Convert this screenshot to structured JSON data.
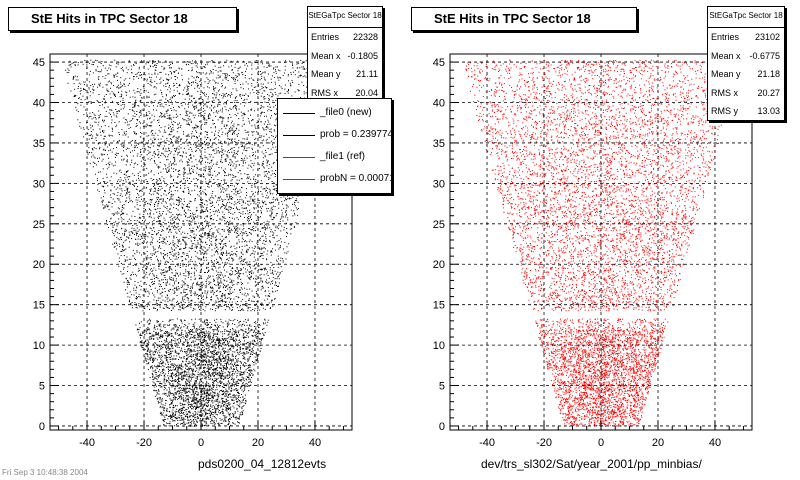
{
  "left": {
    "title": "StE Hits in TPC Sector 18",
    "xlabel": "pds0200_04_12812evts",
    "stats": {
      "name": "StEGaTpc Sector 18",
      "rows": [
        {
          "label": "Entries",
          "value": "22328"
        },
        {
          "label": "Mean x",
          "value": "-0.1805"
        },
        {
          "label": "Mean y",
          "value": "21.11"
        },
        {
          "label": "RMS x",
          "value": "20.04"
        }
      ]
    },
    "legend": [
      {
        "label": "_file0 (new)",
        "color": "#000000"
      },
      {
        "label": "prob = 0.239774",
        "color": "#000000"
      },
      {
        "label": "_file1 (ref)",
        "color": "#ff0000"
      },
      {
        "label": "probN = 0.00071",
        "color": "#ff0000"
      }
    ]
  },
  "right": {
    "title": "StE Hits in TPC Sector 18",
    "xlabel": "dev/trs_sl302/Sat/year_2001/pp_minbias/",
    "stats": {
      "name": "StEGaTpc Sector 18",
      "rows": [
        {
          "label": "Entries",
          "value": "23102"
        },
        {
          "label": "Mean x",
          "value": "-0.6775"
        },
        {
          "label": "Mean y",
          "value": "21.18"
        },
        {
          "label": "RMS x",
          "value": "20.27"
        },
        {
          "label": "RMS y",
          "value": "13.03"
        }
      ]
    }
  },
  "corner_text": "Fri Sep  3 10:48:38 2004",
  "chart_data": [
    {
      "type": "scatter",
      "title": "StE Hits in TPC Sector 18",
      "xlabel": "pds0200_04_12812evts",
      "ylabel": "",
      "xlim": [
        -53,
        53
      ],
      "ylim": [
        -0.5,
        46
      ],
      "xticks": [
        -40,
        -20,
        0,
        20,
        40
      ],
      "yticks": [
        0,
        5,
        10,
        15,
        20,
        25,
        30,
        35,
        40,
        45
      ],
      "grid": true,
      "color": "#000000",
      "entries": 22328,
      "mean_x": -0.1805,
      "mean_y": 21.11,
      "rms_x": 20.04
    },
    {
      "type": "scatter",
      "title": "StE Hits in TPC Sector 18",
      "xlabel": "dev/trs_sl302/Sat/year_2001/pp_minbias/",
      "ylabel": "",
      "xlim": [
        -53,
        53
      ],
      "ylim": [
        -0.5,
        46
      ],
      "xticks": [
        -40,
        -20,
        0,
        20,
        40
      ],
      "yticks": [
        0,
        5,
        10,
        15,
        20,
        25,
        30,
        35,
        40,
        45
      ],
      "grid": true,
      "color": "#ff0000",
      "entries": 23102,
      "mean_x": -0.6775,
      "mean_y": 21.18,
      "rms_x": 20.27,
      "rms_y": 13.03
    }
  ]
}
